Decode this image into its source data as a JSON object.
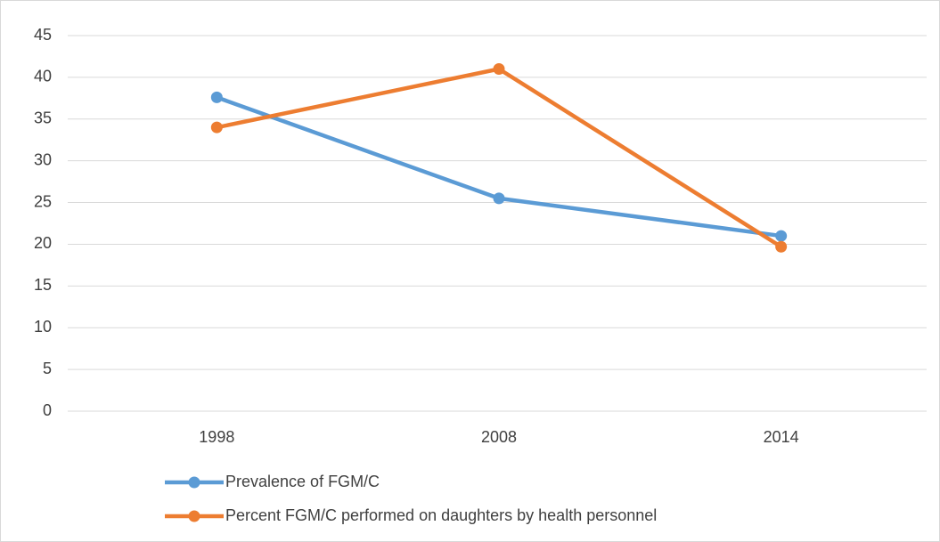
{
  "chart_data": {
    "type": "line",
    "categories": [
      "1998",
      "2008",
      "2014"
    ],
    "series": [
      {
        "name": "Prevalence of FGM/C",
        "color": "#5b9bd5",
        "values": [
          37.6,
          25.5,
          21
        ]
      },
      {
        "name": "Percent FGM/C performed on daughters  by health personnel",
        "color": "#ed7d31",
        "values": [
          34,
          41,
          19.7
        ]
      }
    ],
    "ylim": [
      0,
      45
    ],
    "yticks": [
      0,
      5,
      10,
      15,
      20,
      25,
      30,
      35,
      40,
      45
    ],
    "grid": true,
    "legend": "bottom"
  }
}
